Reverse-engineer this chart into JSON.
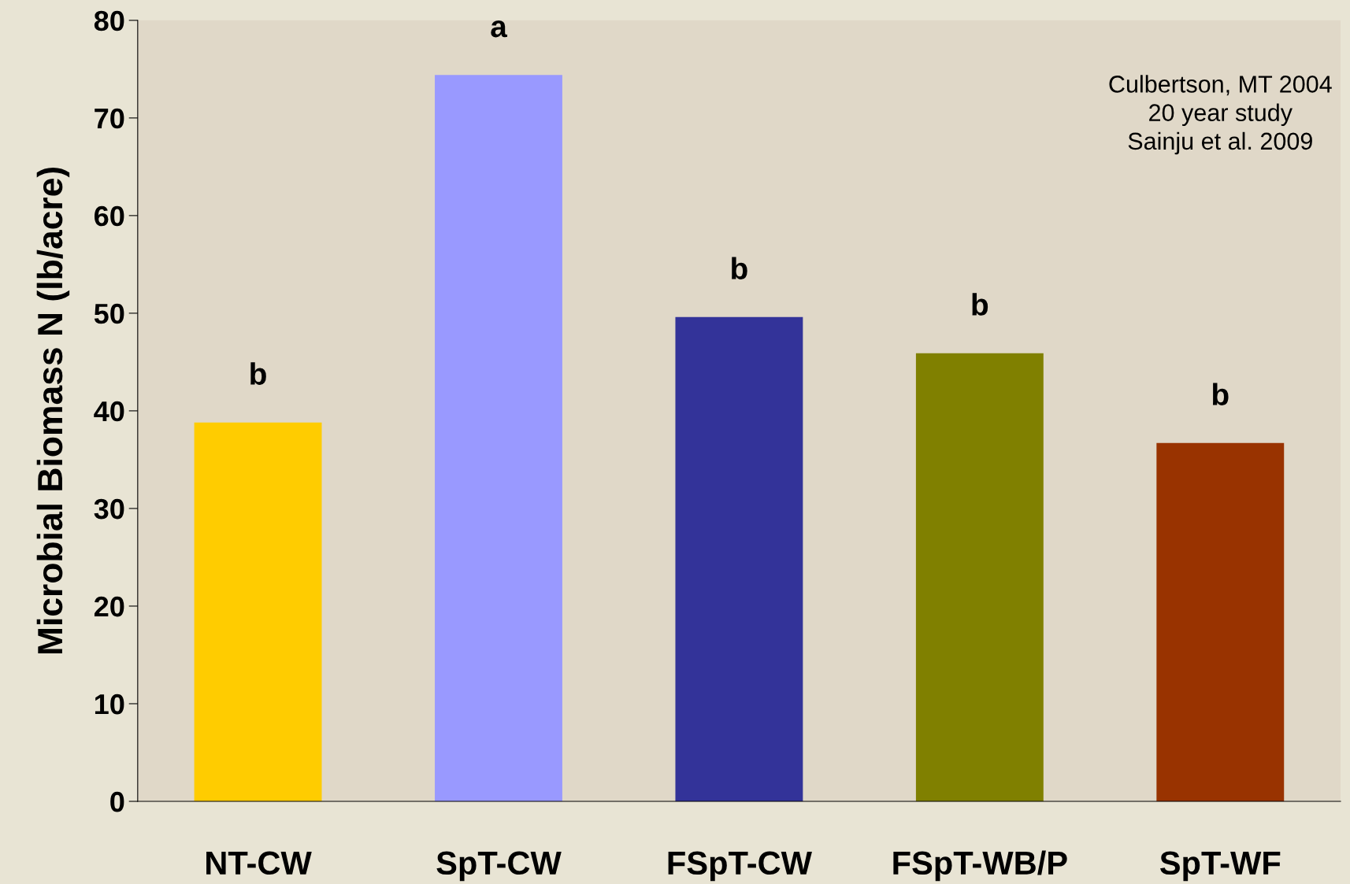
{
  "chart_data": {
    "type": "bar",
    "ylabel": "Microbial Biomass N (lb/acre)",
    "categories": [
      "NT-CW",
      "SpT-CW",
      "FSpT-CW",
      "FSpT-WB/P",
      "SpT-WF"
    ],
    "values": [
      38.8,
      74.4,
      49.6,
      45.9,
      36.7
    ],
    "colors": [
      "#ffcc00",
      "#9999ff",
      "#333399",
      "#808000",
      "#993300"
    ],
    "ylim": [
      0,
      80
    ],
    "yticks": [
      0,
      10,
      20,
      30,
      40,
      50,
      60,
      70,
      80
    ],
    "grid": false,
    "value_labels": [
      "b",
      "a",
      "b",
      "b",
      "b"
    ],
    "annotations": [
      "Culbertson, MT 2004\n20 year study\nSainju et al. 2009"
    ]
  }
}
